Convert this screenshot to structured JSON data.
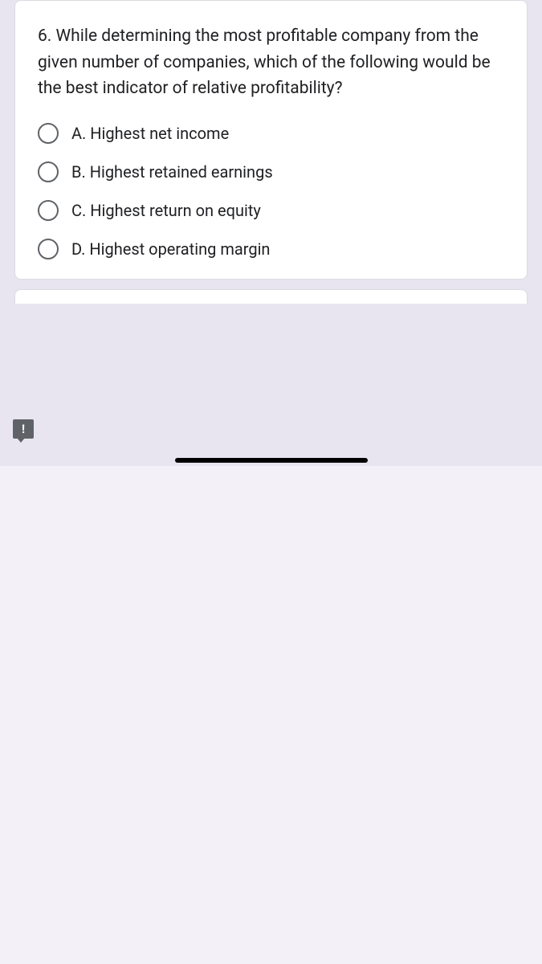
{
  "question": {
    "text": "6. While determining the most profitable company from the given number of companies, which of the following would be the best indicator of relative profitability?",
    "options": [
      {
        "label": "A. Highest net income"
      },
      {
        "label": "B. Highest retained earnings"
      },
      {
        "label": "C. Highest return on equity"
      },
      {
        "label": "D. Highest operating margin"
      }
    ]
  },
  "colors": {
    "background": "#e8e5f0",
    "card_background": "#ffffff",
    "text_primary": "#202124",
    "radio_border": "#5f6368",
    "card_border": "#dadce0",
    "feedback_icon": "#5f6368"
  }
}
